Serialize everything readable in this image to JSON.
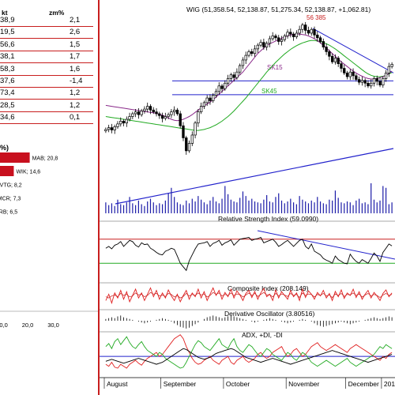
{
  "left_panel": {
    "table": {
      "headers": [
        "kt",
        "zm%"
      ],
      "rows": [
        {
          "value": "38,9",
          "change": "2,1"
        },
        {
          "value": "19,5",
          "change": "2,6"
        },
        {
          "value": "56,6",
          "change": "1,5"
        },
        {
          "value": "38,1",
          "change": "1,7"
        },
        {
          "value": "58,3",
          "change": "1,6"
        },
        {
          "value": "37,6",
          "change": "-1,4"
        },
        {
          "value": "73,4",
          "change": "1,2"
        },
        {
          "value": "28,5",
          "change": "1,2"
        },
        {
          "value": "34,6",
          "change": "0,1"
        }
      ]
    },
    "mini_title": "%)",
    "bar_chart": {
      "bars": [
        {
          "label": "MAB; 20,8",
          "value": 20.8
        },
        {
          "label": "WIK; 14,6",
          "value": 14.6
        },
        {
          "label": "VTG; 8,2",
          "value": 8.2
        },
        {
          "label": "MCR; 7,3",
          "value": 7.3
        },
        {
          "label": "ERB; 6,5",
          "value": 6.5
        }
      ],
      "ticks": [
        "10,0",
        "20,0",
        "30,0"
      ],
      "tick_values": [
        10,
        20,
        30
      ],
      "bar_color": "#c8101e"
    }
  },
  "chart_data": {
    "type": "candlestick",
    "title": "WIG (51,358.54, 52,138.87, 51,275.34, 52,138.87, +1,062.81)",
    "peak_label": "56 385",
    "ma_labels": [
      "SK15",
      "SK45"
    ],
    "months": [
      "August",
      "September",
      "October",
      "November",
      "December",
      "2014"
    ],
    "price": {
      "closes": [
        45100,
        45300,
        45050,
        45400,
        45700,
        46000,
        45800,
        46200,
        46500,
        46800,
        47000,
        46700,
        47100,
        47300,
        47600,
        47200,
        47000,
        46800,
        46600,
        46300,
        46500,
        46700,
        47000,
        47200,
        46800,
        45500,
        44200,
        42800,
        43600,
        44500,
        45800,
        47000,
        47600,
        48000,
        48500,
        48200,
        48800,
        49200,
        49800,
        49500,
        50100,
        50600,
        51000,
        50700,
        51300,
        52000,
        52600,
        53100,
        53500,
        53300,
        53800,
        54200,
        54500,
        54000,
        54400,
        54900,
        55200,
        55000,
        54600,
        54800,
        55200,
        55600,
        55400,
        55100,
        55500,
        55900,
        56385,
        55800,
        55500,
        55900,
        55300,
        55000,
        54600,
        54000,
        53500,
        53000,
        52400,
        52800,
        52200,
        51700,
        51200,
        50800,
        51300,
        50900,
        50500,
        50200,
        50400,
        50100,
        49800,
        50100,
        50600,
        50300,
        49900,
        50600,
        51200,
        51900,
        52139
      ],
      "sk15": [
        47700,
        47650,
        47600,
        47550,
        47500,
        47450,
        47400,
        47350,
        47300,
        47250,
        47200,
        47150,
        47100,
        47050,
        47000,
        46950,
        46900,
        46850,
        46750,
        46650,
        46500,
        46350,
        46200,
        46100,
        46050,
        46100,
        46200,
        46350,
        46500,
        46700,
        46950,
        47200,
        47450,
        47650,
        47850,
        48050,
        48300,
        48600,
        48900,
        49200,
        49500,
        49800,
        50100,
        50400,
        50700,
        51000,
        51300,
        51700,
        52100,
        52500,
        52900,
        53300,
        53600,
        53900,
        54150,
        54350,
        54500,
        54650,
        54800,
        54950,
        55100,
        55200,
        55300,
        55350,
        55400,
        55400,
        55350,
        55300,
        55200,
        55050,
        54900,
        54700,
        54450,
        54200,
        53900,
        53600,
        53300,
        53000,
        52700,
        52400,
        52150,
        51900,
        51650,
        51400,
        51200,
        51000,
        50850,
        50700,
        50600,
        50550,
        50550,
        50600,
        50700,
        50800,
        50950,
        51150,
        51400
      ],
      "sk45": [
        46500,
        46450,
        46400,
        46350,
        46300,
        46250,
        46200,
        46150,
        46100,
        46050,
        46000,
        45950,
        45900,
        45850,
        45800,
        45750,
        45700,
        45650,
        45600,
        45550,
        45500,
        45450,
        45400,
        45350,
        45300,
        45250,
        45200,
        45150,
        45100,
        45050,
        45000,
        45000,
        45050,
        45100,
        45200,
        45300,
        45450,
        45600,
        45800,
        46000,
        46250,
        46500,
        46800,
        47100,
        47450,
        47800,
        48150,
        48500,
        48900,
        49300,
        49700,
        50100,
        50500,
        50900,
        51300,
        51650,
        52000,
        52350,
        52650,
        52950,
        53250,
        53500,
        53750,
        53950,
        54150,
        54300,
        54450,
        54550,
        54650,
        54700,
        54700,
        54650,
        54600,
        54500,
        54350,
        54200,
        54000,
        53800,
        53550,
        53300,
        53050,
        52800,
        52550,
        52300,
        52050,
        51800,
        51550,
        51300,
        51100,
        50950,
        50850,
        50800,
        50800,
        50850,
        50950,
        51100,
        51250
      ],
      "ylim": [
        41000,
        57200
      ]
    },
    "volume": [
      12,
      9,
      11,
      8,
      15,
      10,
      9,
      12,
      18,
      11,
      9,
      14,
      10,
      8,
      13,
      16,
      12,
      9,
      11,
      10,
      14,
      22,
      28,
      18,
      12,
      10,
      9,
      14,
      11,
      16,
      13,
      19,
      15,
      12,
      10,
      14,
      18,
      13,
      11,
      16,
      30,
      21,
      15,
      13,
      12,
      17,
      24,
      19,
      14,
      16,
      13,
      12,
      11,
      15,
      20,
      13,
      12,
      18,
      22,
      14,
      11,
      13,
      16,
      12,
      10,
      19,
      15,
      13,
      11,
      14,
      12,
      18,
      13,
      11,
      10,
      15,
      14,
      25,
      17,
      12,
      11,
      13,
      12,
      9,
      14,
      16,
      11,
      12,
      10,
      33,
      15,
      12,
      14,
      30,
      28,
      10,
      12
    ],
    "rsi": {
      "label": "Relative Strength Index (59.0990)",
      "upper": 70,
      "lower": 30,
      "values": [
        55,
        58,
        54,
        60,
        62,
        66,
        58,
        63,
        68,
        66,
        60,
        57,
        64,
        61,
        62,
        55,
        52,
        48,
        45,
        44,
        50,
        52,
        55,
        53,
        42,
        30,
        24,
        18,
        34,
        44,
        54,
        62,
        63,
        64,
        66,
        58,
        63,
        65,
        68,
        60,
        64,
        66,
        69,
        60,
        65,
        70,
        71,
        72,
        73,
        68,
        70,
        71,
        73,
        64,
        66,
        68,
        70,
        65,
        58,
        61,
        65,
        68,
        63,
        58,
        63,
        68,
        70,
        58,
        54,
        62,
        50,
        47,
        44,
        38,
        35,
        33,
        30,
        42,
        36,
        33,
        30,
        29,
        45,
        38,
        33,
        30,
        36,
        33,
        30,
        38,
        47,
        42,
        33,
        48,
        55,
        62,
        59
      ]
    },
    "composite": {
      "label": "Composite Index (208.149)",
      "values": [
        30,
        55,
        20,
        60,
        40,
        70,
        35,
        65,
        25,
        50,
        75,
        40,
        60,
        30,
        55,
        80,
        45,
        70,
        35,
        60,
        40,
        72,
        48,
        30,
        55,
        25,
        50,
        70,
        35,
        60,
        45,
        75,
        40,
        65,
        30,
        55,
        80,
        50,
        70,
        35,
        62,
        45,
        75,
        40,
        68,
        52,
        30,
        58,
        70,
        42,
        66,
        35,
        60,
        78,
        45,
        55,
        30,
        72,
        40,
        65,
        50,
        35,
        70,
        45,
        60,
        30,
        75,
        42,
        68,
        55,
        35,
        62,
        48,
        70,
        40,
        58,
        30,
        66,
        45,
        72,
        38,
        60,
        50,
        75,
        42,
        65,
        35,
        55,
        70,
        40,
        62,
        48,
        30,
        58,
        72,
        45,
        60
      ],
      "values2": [
        45,
        40,
        48,
        52,
        45,
        58,
        50,
        55,
        44,
        48,
        60,
        52,
        55,
        45,
        50,
        62,
        55,
        58,
        48,
        52,
        46,
        58,
        54,
        44,
        50,
        40,
        46,
        58,
        48,
        54,
        50,
        60,
        52,
        56,
        44,
        50,
        62,
        55,
        60,
        48,
        54,
        50,
        60,
        50,
        56,
        54,
        44,
        52,
        60,
        50,
        58,
        46,
        54,
        62,
        52,
        54,
        44,
        58,
        48,
        56,
        52,
        46,
        58,
        50,
        54,
        42,
        60,
        50,
        56,
        54,
        44,
        54,
        50,
        58,
        48,
        52,
        42,
        56,
        50,
        58,
        46,
        54,
        52,
        60,
        50,
        56,
        44,
        52,
        58,
        48,
        54,
        50,
        42,
        52,
        58,
        50,
        54
      ]
    },
    "derivative_oscillator": {
      "label": "Derivative Oscillator (3.80516)",
      "values": [
        2,
        3,
        4,
        3,
        5,
        6,
        4,
        3,
        2,
        1,
        0,
        -1,
        -2,
        -3,
        -2,
        -1,
        0,
        1,
        2,
        3,
        2,
        1,
        -1,
        -3,
        -5,
        -7,
        -8,
        -9,
        -8,
        -6,
        -4,
        -2,
        0,
        2,
        4,
        5,
        6,
        5,
        4,
        3,
        4,
        5,
        6,
        5,
        4,
        3,
        2,
        1,
        0,
        -1,
        -2,
        -1,
        0,
        1,
        2,
        3,
        2,
        1,
        0,
        -1,
        -2,
        -3,
        -2,
        -1,
        0,
        1,
        2,
        1,
        0,
        -1,
        -3,
        -5,
        -6,
        -7,
        -6,
        -5,
        -4,
        -3,
        -2,
        -1,
        -2,
        -3,
        -4,
        -3,
        -2,
        -1,
        0,
        1,
        2,
        3,
        4,
        3,
        2,
        3,
        4,
        5,
        4
      ]
    },
    "adx": {
      "label": "ADX, +DI, -DI",
      "adx": [
        15,
        16,
        17,
        16,
        15,
        14,
        13,
        14,
        15,
        16,
        17,
        18,
        17,
        16,
        15,
        14,
        13,
        12,
        13,
        14,
        16,
        18,
        20,
        22,
        24,
        26,
        28,
        27,
        25,
        23,
        21,
        19,
        18,
        17,
        18,
        19,
        21,
        23,
        24,
        25,
        26,
        27,
        28,
        27,
        25,
        23,
        21,
        19,
        18,
        17,
        16,
        15,
        14,
        15,
        16,
        17,
        18,
        17,
        16,
        15,
        14,
        13,
        12,
        13,
        14,
        15,
        16,
        17,
        18,
        19,
        20,
        21,
        22,
        23,
        24,
        25,
        26,
        25,
        24,
        23,
        22,
        21,
        20,
        19,
        18,
        17,
        16,
        15,
        14,
        15,
        16,
        17,
        18,
        19,
        20,
        21,
        22
      ],
      "plus_di": [
        30,
        33,
        28,
        35,
        38,
        32,
        36,
        40,
        34,
        30,
        28,
        32,
        35,
        30,
        26,
        24,
        22,
        20,
        24,
        22,
        18,
        16,
        14,
        12,
        10,
        8,
        9,
        14,
        20,
        26,
        32,
        36,
        34,
        30,
        28,
        26,
        30,
        34,
        38,
        32,
        30,
        28,
        34,
        38,
        30,
        26,
        24,
        28,
        32,
        30,
        26,
        22,
        20,
        24,
        28,
        26,
        22,
        20,
        18,
        16,
        20,
        24,
        22,
        18,
        16,
        20,
        24,
        22,
        18,
        14,
        12,
        10,
        12,
        14,
        16,
        14,
        12,
        10,
        12,
        14,
        16,
        18,
        14,
        12,
        10,
        12,
        14,
        16,
        18,
        20,
        22,
        26,
        30,
        28,
        32,
        30,
        28
      ],
      "minus_di": [
        12,
        10,
        14,
        9,
        8,
        12,
        10,
        8,
        12,
        14,
        16,
        13,
        11,
        15,
        18,
        20,
        22,
        24,
        20,
        22,
        26,
        30,
        34,
        38,
        40,
        42,
        38,
        30,
        24,
        18,
        14,
        12,
        13,
        16,
        18,
        20,
        16,
        14,
        12,
        16,
        18,
        20,
        14,
        12,
        16,
        18,
        20,
        16,
        14,
        16,
        18,
        22,
        24,
        20,
        18,
        20,
        24,
        26,
        28,
        30,
        24,
        20,
        22,
        26,
        28,
        24,
        20,
        22,
        26,
        30,
        32,
        34,
        30,
        28,
        26,
        28,
        30,
        32,
        30,
        28,
        26,
        24,
        28,
        30,
        32,
        30,
        28,
        26,
        24,
        22,
        20,
        18,
        16,
        20,
        18,
        22,
        24
      ]
    }
  }
}
